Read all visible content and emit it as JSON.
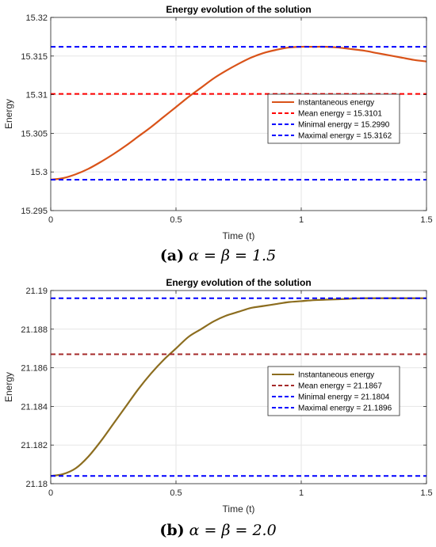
{
  "chart_data": [
    {
      "type": "line",
      "title": "Energy evolution of the solution",
      "xlabel": "Time (t)",
      "ylabel": "Energy",
      "xlim": [
        0,
        1.5
      ],
      "ylim": [
        15.295,
        15.32
      ],
      "xticks": [
        0,
        0.5,
        1,
        1.5
      ],
      "xtick_labels": [
        "0",
        "0.5",
        "1",
        "1.5"
      ],
      "yticks": [
        15.295,
        15.3,
        15.305,
        15.31,
        15.315,
        15.32
      ],
      "ytick_labels": [
        "15.295",
        "15.3",
        "15.305",
        "15.31",
        "15.315",
        "15.32"
      ],
      "grid": true,
      "legend_position": "right",
      "series": [
        {
          "name": "Instantaneous energy",
          "style": "solid",
          "color": "#D95319",
          "x": [
            0,
            0.05,
            0.1,
            0.15,
            0.2,
            0.25,
            0.3,
            0.35,
            0.4,
            0.45,
            0.5,
            0.55,
            0.6,
            0.65,
            0.7,
            0.75,
            0.8,
            0.85,
            0.9,
            0.95,
            1.0,
            1.05,
            1.1,
            1.15,
            1.2,
            1.25,
            1.3,
            1.35,
            1.4,
            1.45,
            1.5
          ],
          "y": [
            15.299,
            15.2992,
            15.2997,
            15.3004,
            15.3013,
            15.3023,
            15.3034,
            15.3046,
            15.3058,
            15.3071,
            15.3084,
            15.3097,
            15.3109,
            15.3121,
            15.3131,
            15.314,
            15.3148,
            15.3154,
            15.3158,
            15.3161,
            15.3162,
            15.3162,
            15.3162,
            15.3161,
            15.3159,
            15.3157,
            15.3154,
            15.3151,
            15.3148,
            15.3145,
            15.3143
          ]
        },
        {
          "name": "Mean energy = 15.3101",
          "style": "dashed",
          "color": "#FF0000",
          "constant": 15.3101
        },
        {
          "name": "Minimal energy = 15.2990",
          "style": "dashed",
          "color": "#0000FF",
          "constant": 15.299
        },
        {
          "name": "Maximal energy = 15.3162",
          "style": "dashed",
          "color": "#0000FF",
          "constant": 15.3162
        }
      ]
    },
    {
      "type": "line",
      "title": "Energy evolution of the solution",
      "xlabel": "Time (t)",
      "ylabel": "Energy",
      "xlim": [
        0,
        1.5
      ],
      "ylim": [
        21.18,
        21.19
      ],
      "xticks": [
        0,
        0.5,
        1,
        1.5
      ],
      "xtick_labels": [
        "0",
        "0.5",
        "1",
        "1.5"
      ],
      "yticks": [
        21.18,
        21.182,
        21.184,
        21.186,
        21.188,
        21.19
      ],
      "ytick_labels": [
        "21.18",
        "21.182",
        "21.184",
        "21.186",
        "21.188",
        "21.19"
      ],
      "grid": true,
      "legend_position": "right",
      "series": [
        {
          "name": "Instantaneous energy",
          "style": "solid",
          "color": "#8C6D1F",
          "x": [
            0,
            0.05,
            0.1,
            0.15,
            0.2,
            0.25,
            0.3,
            0.35,
            0.4,
            0.45,
            0.5,
            0.55,
            0.6,
            0.65,
            0.7,
            0.75,
            0.8,
            0.85,
            0.9,
            0.95,
            1.0,
            1.05,
            1.1,
            1.15,
            1.2,
            1.25,
            1.3,
            1.35,
            1.4,
            1.45,
            1.5
          ],
          "y": [
            21.1804,
            21.1805,
            21.1808,
            21.1814,
            21.1822,
            21.1831,
            21.184,
            21.1849,
            21.1857,
            21.1864,
            21.187,
            21.1876,
            21.188,
            21.1884,
            21.1887,
            21.1889,
            21.1891,
            21.1892,
            21.1893,
            21.1894,
            21.18945,
            21.1895,
            21.18953,
            21.18955,
            21.18958,
            21.1896,
            21.1896,
            21.1896,
            21.1896,
            21.1896,
            21.1896
          ]
        },
        {
          "name": "Mean energy = 21.1867",
          "style": "dashed",
          "color": "#A52A2A",
          "constant": 21.1867
        },
        {
          "name": "Minimal energy = 21.1804",
          "style": "dashed",
          "color": "#0000FF",
          "constant": 21.1804
        },
        {
          "name": "Maximal energy = 21.1896",
          "style": "dashed",
          "color": "#0000FF",
          "constant": 21.1896
        }
      ]
    }
  ],
  "captions": [
    {
      "label": "(a)",
      "text": "α = β = 1.5"
    },
    {
      "label": "(b)",
      "text": "α = β = 2.0"
    }
  ]
}
